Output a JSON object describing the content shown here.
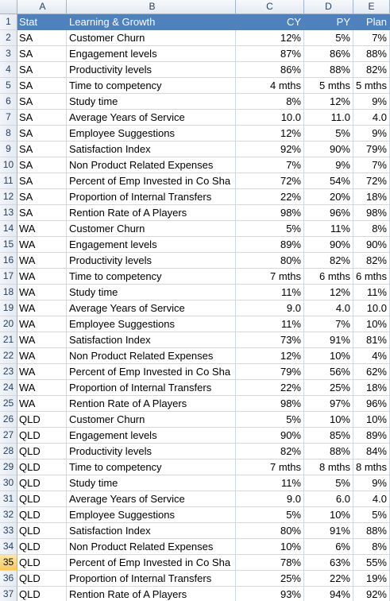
{
  "columns": [
    "A",
    "B",
    "C",
    "D",
    "E"
  ],
  "selected_row": "35",
  "header_row": {
    "num": "1",
    "a": "Stat",
    "b": "Learning & Growth",
    "c": "CY",
    "d": "PY",
    "e": "Plan"
  },
  "rows": [
    {
      "num": "2",
      "a": "SA",
      "b": "Customer Churn",
      "c": "12%",
      "d": "5%",
      "e": "7%"
    },
    {
      "num": "3",
      "a": "SA",
      "b": "Engagement levels",
      "c": "87%",
      "d": "86%",
      "e": "88%"
    },
    {
      "num": "4",
      "a": "SA",
      "b": "Productivity levels",
      "c": "86%",
      "d": "88%",
      "e": "82%"
    },
    {
      "num": "5",
      "a": "SA",
      "b": "Time to competency",
      "c": "4 mths",
      "d": "5 mths",
      "e": "5 mths"
    },
    {
      "num": "6",
      "a": "SA",
      "b": "Study time",
      "c": "8%",
      "d": "12%",
      "e": "9%"
    },
    {
      "num": "7",
      "a": "SA",
      "b": "Average Years of Service",
      "c": "10.0",
      "d": "11.0",
      "e": "4.0"
    },
    {
      "num": "8",
      "a": "SA",
      "b": "Employee Suggestions",
      "c": "12%",
      "d": "5%",
      "e": "9%"
    },
    {
      "num": "9",
      "a": "SA",
      "b": "Satisfaction Index",
      "c": "92%",
      "d": "90%",
      "e": "79%"
    },
    {
      "num": "10",
      "a": "SA",
      "b": "Non Product Related Expenses",
      "c": "7%",
      "d": "9%",
      "e": "7%"
    },
    {
      "num": "11",
      "a": "SA",
      "b": "Percent of Emp Invested in Co Sha",
      "c": "72%",
      "d": "54%",
      "e": "72%"
    },
    {
      "num": "12",
      "a": "SA",
      "b": "Proportion of Internal Transfers",
      "c": "22%",
      "d": "20%",
      "e": "18%"
    },
    {
      "num": "13",
      "a": "SA",
      "b": "Rention Rate of A Players",
      "c": "98%",
      "d": "96%",
      "e": "98%"
    },
    {
      "num": "14",
      "a": "WA",
      "b": "Customer Churn",
      "c": "5%",
      "d": "11%",
      "e": "8%"
    },
    {
      "num": "15",
      "a": "WA",
      "b": "Engagement levels",
      "c": "89%",
      "d": "90%",
      "e": "90%"
    },
    {
      "num": "16",
      "a": "WA",
      "b": "Productivity levels",
      "c": "80%",
      "d": "82%",
      "e": "82%"
    },
    {
      "num": "17",
      "a": "WA",
      "b": "Time to competency",
      "c": "7 mths",
      "d": "6 mths",
      "e": "6 mths"
    },
    {
      "num": "18",
      "a": "WA",
      "b": "Study time",
      "c": "11%",
      "d": "12%",
      "e": "11%"
    },
    {
      "num": "19",
      "a": "WA",
      "b": "Average Years of Service",
      "c": "9.0",
      "d": "4.0",
      "e": "10.0"
    },
    {
      "num": "20",
      "a": "WA",
      "b": "Employee Suggestions",
      "c": "11%",
      "d": "7%",
      "e": "10%"
    },
    {
      "num": "21",
      "a": "WA",
      "b": "Satisfaction Index",
      "c": "73%",
      "d": "91%",
      "e": "81%"
    },
    {
      "num": "22",
      "a": "WA",
      "b": "Non Product Related Expenses",
      "c": "12%",
      "d": "10%",
      "e": "4%"
    },
    {
      "num": "23",
      "a": "WA",
      "b": "Percent of Emp Invested in Co Sha",
      "c": "79%",
      "d": "56%",
      "e": "62%"
    },
    {
      "num": "24",
      "a": "WA",
      "b": "Proportion of Internal Transfers",
      "c": "22%",
      "d": "25%",
      "e": "18%"
    },
    {
      "num": "25",
      "a": "WA",
      "b": "Rention Rate of A Players",
      "c": "98%",
      "d": "97%",
      "e": "96%"
    },
    {
      "num": "26",
      "a": "QLD",
      "b": "Customer Churn",
      "c": "5%",
      "d": "10%",
      "e": "10%"
    },
    {
      "num": "27",
      "a": "QLD",
      "b": "Engagement levels",
      "c": "90%",
      "d": "85%",
      "e": "89%"
    },
    {
      "num": "28",
      "a": "QLD",
      "b": "Productivity levels",
      "c": "82%",
      "d": "88%",
      "e": "84%"
    },
    {
      "num": "29",
      "a": "QLD",
      "b": "Time to competency",
      "c": "7 mths",
      "d": "8 mths",
      "e": "8 mths"
    },
    {
      "num": "30",
      "a": "QLD",
      "b": "Study time",
      "c": "11%",
      "d": "5%",
      "e": "9%"
    },
    {
      "num": "31",
      "a": "QLD",
      "b": "Average Years of Service",
      "c": "9.0",
      "d": "6.0",
      "e": "4.0"
    },
    {
      "num": "32",
      "a": "QLD",
      "b": "Employee Suggestions",
      "c": "5%",
      "d": "10%",
      "e": "5%"
    },
    {
      "num": "33",
      "a": "QLD",
      "b": "Satisfaction Index",
      "c": "80%",
      "d": "91%",
      "e": "88%"
    },
    {
      "num": "34",
      "a": "QLD",
      "b": "Non Product Related Expenses",
      "c": "10%",
      "d": "6%",
      "e": "8%"
    },
    {
      "num": "35",
      "a": "QLD",
      "b": "Percent of Emp Invested in Co Sha",
      "c": "78%",
      "d": "63%",
      "e": "55%"
    },
    {
      "num": "36",
      "a": "QLD",
      "b": "Proportion of Internal Transfers",
      "c": "25%",
      "d": "22%",
      "e": "19%"
    },
    {
      "num": "37",
      "a": "QLD",
      "b": "Rention Rate of A Players",
      "c": "93%",
      "d": "94%",
      "e": "92%"
    }
  ]
}
